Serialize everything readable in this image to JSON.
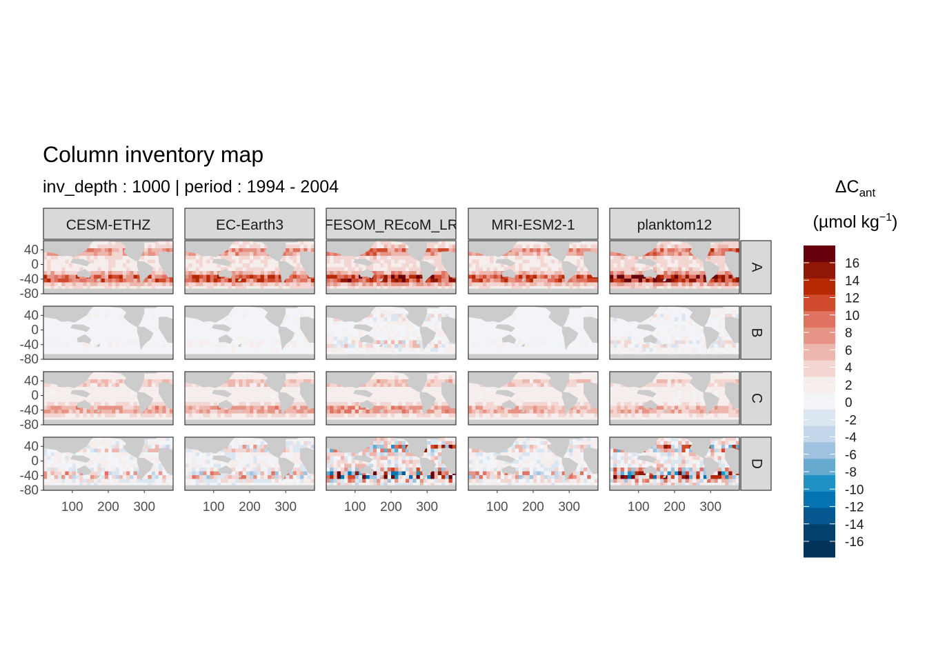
{
  "chart_data": {
    "type": "heatmap",
    "title": "Column inventory map",
    "subtitle": "inv_depth : 1000 | period : 1994 - 2004",
    "facet_columns": [
      "CESM-ETHZ",
      "EC-Earth3",
      "FESOM_REcoM_LR",
      "MRI-ESM2-1",
      "planktom12"
    ],
    "facet_rows": [
      "A",
      "B",
      "C",
      "D"
    ],
    "x_ticks": [
      100,
      200,
      300
    ],
    "y_ticks": [
      40,
      0,
      -40,
      -80
    ],
    "xlim": [
      20,
      380
    ],
    "ylim": [
      -80,
      65
    ],
    "legend": {
      "title_main": "ΔC",
      "title_sub": "ant",
      "title_units_pre": "(µmol kg",
      "title_units_sup": "−1",
      "title_units_post": ")",
      "position": "right",
      "tick_labels": [
        "16",
        "14",
        "12",
        "10",
        "8",
        "6",
        "4",
        "2",
        "0",
        "-2",
        "-4",
        "-6",
        "-8",
        "-10",
        "-12",
        "-14",
        "-16"
      ],
      "colors": [
        "#67000d",
        "#8f1705",
        "#b52a05",
        "#d04b2e",
        "#df7260",
        "#e69486",
        "#edb7ae",
        "#f3d6d1",
        "#f6eeec",
        "#f2f4f7",
        "#dbe6f1",
        "#c4d7ea",
        "#9fc3e0",
        "#67aad0",
        "#1f91c4",
        "#0573b0",
        "#04578f",
        "#03406b",
        "#023358"
      ]
    },
    "panel_intensity": {
      "A": [
        0.55,
        0.58,
        0.7,
        0.55,
        0.75
      ],
      "B": [
        0.05,
        0.07,
        0.2,
        0.05,
        0.15
      ],
      "C": [
        0.35,
        0.35,
        0.4,
        0.32,
        0.3
      ],
      "D": [
        0.3,
        0.35,
        0.8,
        0.35,
        0.7
      ]
    },
    "colors": {
      "land": "#cccccc",
      "strip_bg": "#d9d9d9",
      "panel_border": "#333333",
      "ocean_base": "#f6eeec"
    }
  }
}
